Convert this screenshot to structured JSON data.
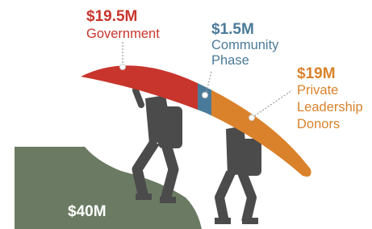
{
  "segments": [
    {
      "amount": "$19.5M",
      "label_lines": [
        "Government"
      ]
    },
    {
      "amount": "$1.5M",
      "label_lines": [
        "Community",
        "Phase"
      ]
    },
    {
      "amount": "$19M",
      "label_lines": [
        "Private",
        "Leadership",
        "Donors"
      ]
    }
  ],
  "total": "$40M"
}
